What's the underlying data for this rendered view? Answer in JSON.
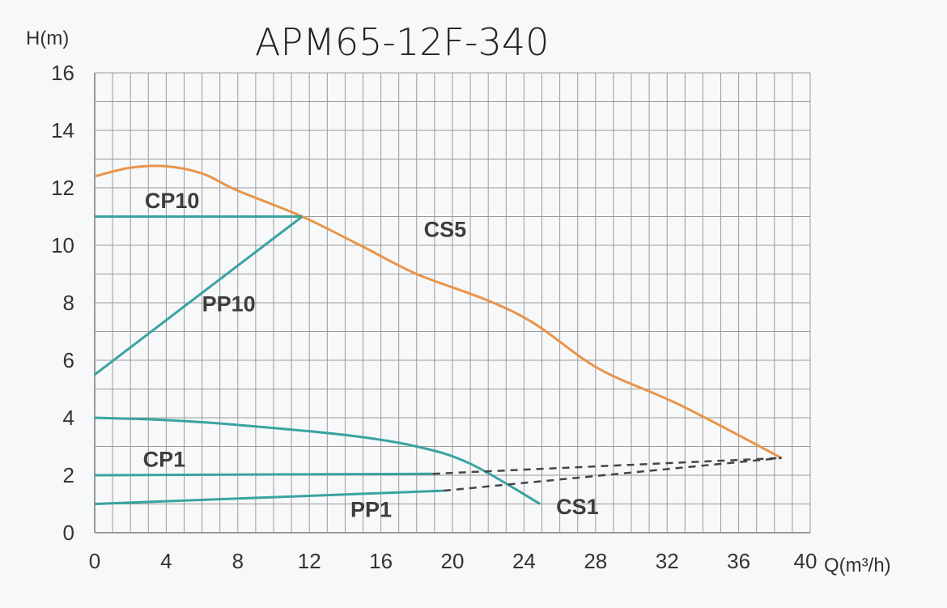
{
  "chart_data": {
    "type": "line",
    "title": "APM65-12F-340",
    "xlabel": "Q(m³/h)",
    "ylabel": "H(m)",
    "xlim": [
      0,
      40
    ],
    "ylim": [
      0,
      16
    ],
    "xticks": [
      "0",
      "4",
      "8",
      "12",
      "16",
      "20",
      "24",
      "28",
      "32",
      "36",
      "40"
    ],
    "yticks": [
      "0",
      "2",
      "4",
      "6",
      "8",
      "10",
      "12",
      "14",
      "16"
    ],
    "grid": true,
    "colors": {
      "CS5": "#e8954a",
      "teal": "#3aa3a0",
      "dashed": "#444444",
      "grid": "#9a9a9a"
    },
    "series": [
      {
        "name": "CS5",
        "style": "solid",
        "color": "#e8954a",
        "x": [
          0,
          2,
          4,
          6,
          8,
          11.6,
          15,
          18,
          21.9,
          24.6,
          28.2,
          32.7,
          38.4
        ],
        "y": [
          12.4,
          12.7,
          12.75,
          12.5,
          11.9,
          11.0,
          9.95,
          9.0,
          8.1,
          7.27,
          5.7,
          4.45,
          2.6
        ]
      },
      {
        "name": "CP10",
        "style": "solid",
        "color": "#3aa3a0",
        "x": [
          0,
          11.6
        ],
        "y": [
          11.0,
          11.0
        ]
      },
      {
        "name": "PP10",
        "style": "solid",
        "color": "#3aa3a0",
        "x": [
          0,
          11.6
        ],
        "y": [
          5.5,
          11.0
        ]
      },
      {
        "name": "CS1",
        "style": "solid",
        "color": "#3aa3a0",
        "x": [
          0,
          4,
          8,
          14,
          18,
          21,
          24.9
        ],
        "y": [
          4.0,
          3.92,
          3.75,
          3.4,
          3.0,
          2.4,
          1.0
        ]
      },
      {
        "name": "CP1",
        "style": "solid",
        "color": "#3aa3a0",
        "x": [
          0,
          18.9
        ],
        "y": [
          2.0,
          2.05
        ]
      },
      {
        "name": "PP1",
        "style": "solid",
        "color": "#3aa3a0",
        "x": [
          0,
          19.5
        ],
        "y": [
          1.0,
          1.46
        ]
      },
      {
        "name": "",
        "style": "dashed",
        "color": "#444444",
        "x": [
          18.9,
          38.4
        ],
        "y": [
          2.05,
          2.6
        ]
      },
      {
        "name": "",
        "style": "dashed",
        "color": "#444444",
        "x": [
          19.5,
          38.4
        ],
        "y": [
          1.46,
          2.6
        ]
      }
    ],
    "labels": [
      {
        "text": "CS5",
        "x": 18.4,
        "y": 10.3
      },
      {
        "text": "CP10",
        "x": 2.8,
        "y": 11.3
      },
      {
        "text": "PP10",
        "x": 6.0,
        "y": 7.7
      },
      {
        "text": "CP1",
        "x": 2.7,
        "y": 2.3
      },
      {
        "text": "PP1",
        "x": 14.3,
        "y": 0.55
      },
      {
        "text": "CS1",
        "x": 25.8,
        "y": 0.65
      }
    ]
  }
}
